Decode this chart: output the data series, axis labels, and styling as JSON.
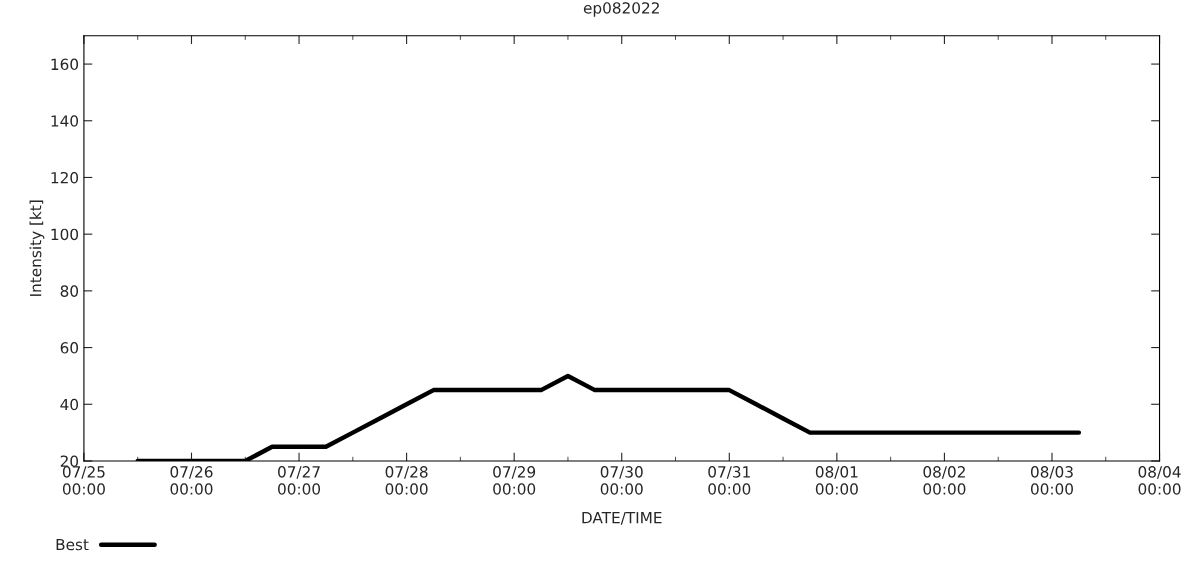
{
  "chart_data": {
    "type": "line",
    "title": "ep082022",
    "xlabel": "DATE/TIME",
    "ylabel": "Intensity [kt]",
    "x": [
      "2022-07-25T12:00",
      "2022-07-26T12:00",
      "2022-07-26T18:00",
      "2022-07-27T06:00",
      "2022-07-27T12:00",
      "2022-07-27T18:00",
      "2022-07-28T00:00",
      "2022-07-28T06:00",
      "2022-07-29T06:00",
      "2022-07-29T12:00",
      "2022-07-29T18:00",
      "2022-07-31T00:00",
      "2022-07-31T06:00",
      "2022-07-31T12:00",
      "2022-07-31T18:00",
      "2022-08-03T06:00"
    ],
    "series": [
      {
        "name": "Best",
        "color": "#000000",
        "values": [
          20,
          20,
          25,
          25,
          30,
          35,
          40,
          45,
          45,
          50,
          45,
          45,
          40,
          35,
          30,
          30
        ]
      }
    ],
    "xlim": [
      "2022-07-25",
      "2022-08-04"
    ],
    "xticks": [
      {
        "value": "2022-07-25",
        "label": "07/25\n00:00"
      },
      {
        "value": "2022-07-26",
        "label": "07/26\n00:00"
      },
      {
        "value": "2022-07-27",
        "label": "07/27\n00:00"
      },
      {
        "value": "2022-07-28",
        "label": "07/28\n00:00"
      },
      {
        "value": "2022-07-29",
        "label": "07/29\n00:00"
      },
      {
        "value": "2022-07-30",
        "label": "07/30\n00:00"
      },
      {
        "value": "2022-07-31",
        "label": "07/31\n00:00"
      },
      {
        "value": "2022-08-01",
        "label": "08/01\n00:00"
      },
      {
        "value": "2022-08-02",
        "label": "08/02\n00:00"
      },
      {
        "value": "2022-08-03",
        "label": "08/03\n00:00"
      },
      {
        "value": "2022-08-04",
        "label": "08/04\n00:00"
      }
    ],
    "ylim": [
      20,
      170
    ],
    "yticks": [
      20,
      40,
      60,
      80,
      100,
      120,
      140,
      160
    ],
    "grid": false,
    "legend": "bottom left",
    "marker": "none",
    "line_style": "solid"
  }
}
